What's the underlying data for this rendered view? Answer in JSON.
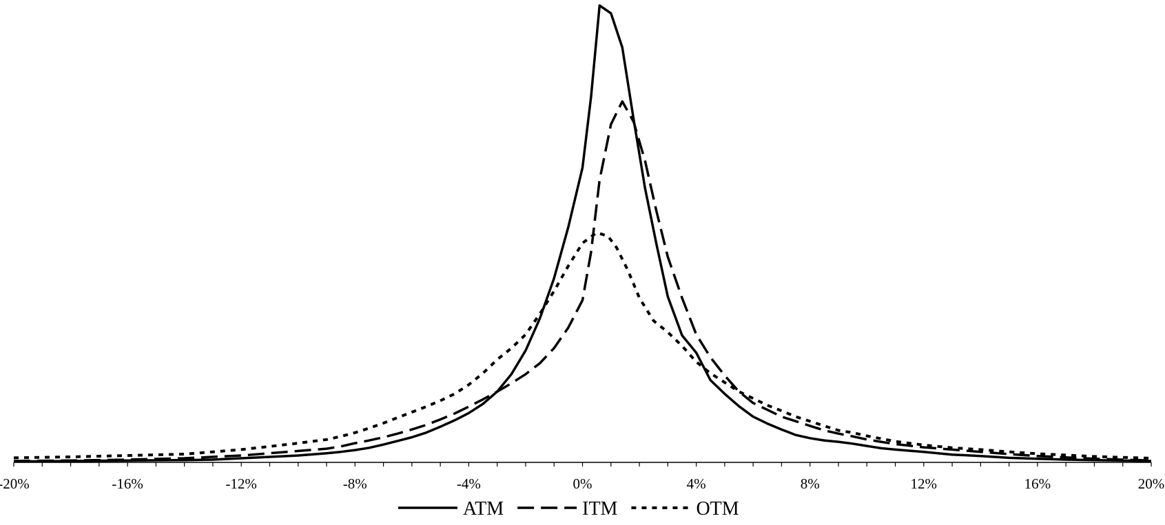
{
  "chart_data": {
    "type": "line",
    "title": "",
    "xlabel": "",
    "ylabel": "",
    "xlim": [
      -20,
      20
    ],
    "ylim": [
      0,
      100
    ],
    "x_ticks": [
      -20,
      -16,
      -12,
      -8,
      -4,
      0,
      4,
      8,
      12,
      16,
      20
    ],
    "x_tick_labels": [
      "-20%",
      "-16%",
      "-12%",
      "-8%",
      "-4%",
      "0%",
      "4%",
      "8%",
      "12%",
      "16%",
      "20%"
    ],
    "y_axis_visible": false,
    "grid": false,
    "legend_position": "bottom",
    "series": [
      {
        "name": "ATM",
        "line_style": "solid",
        "color": "#000000",
        "x": [
          -20,
          -18,
          -16,
          -14,
          -13,
          -12,
          -11,
          -10,
          -9,
          -8.5,
          -8,
          -7.5,
          -7,
          -6.5,
          -6,
          -5.5,
          -5,
          -4.5,
          -4,
          -3.5,
          -3,
          -2.5,
          -2,
          -1.5,
          -1,
          -0.5,
          0,
          0.3,
          0.6,
          1.0,
          1.4,
          1.8,
          2.2,
          2.6,
          3.0,
          3.5,
          4.0,
          4.5,
          5.0,
          5.5,
          6.0,
          6.5,
          7.0,
          7.5,
          8.0,
          8.5,
          9.0,
          9.5,
          10,
          10.5,
          11,
          12,
          13,
          14,
          15,
          16,
          17,
          18,
          19,
          20
        ],
        "values": [
          0.2,
          0.3,
          0.4,
          0.5,
          0.6,
          0.9,
          1.2,
          1.5,
          2.0,
          2.3,
          2.7,
          3.2,
          3.9,
          4.7,
          5.5,
          6.5,
          7.8,
          9.2,
          10.8,
          12.8,
          15.5,
          19.3,
          24.5,
          31.5,
          40.3,
          51.5,
          64.5,
          80.0,
          100.0,
          98.3,
          90.8,
          75.0,
          60.0,
          47.8,
          36.3,
          27.8,
          24.0,
          18.0,
          15.0,
          12.3,
          10.0,
          8.5,
          7.2,
          6.0,
          5.3,
          4.8,
          4.5,
          4.1,
          3.6,
          3.1,
          2.8,
          2.3,
          1.7,
          1.4,
          1.0,
          0.8,
          0.6,
          0.5,
          0.4,
          0.3
        ]
      },
      {
        "name": "ITM",
        "line_style": "dashed",
        "color": "#000000",
        "x": [
          -20,
          -18,
          -16,
          -14,
          -12,
          -11,
          -10,
          -9,
          -8.5,
          -8,
          -7.5,
          -7,
          -6.5,
          -6,
          -5.5,
          -5,
          -4.5,
          -4,
          -3.5,
          -3,
          -2.5,
          -2,
          -1.5,
          -1,
          -0.5,
          0,
          0.3,
          0.6,
          1.0,
          1.4,
          1.8,
          2.2,
          2.6,
          3.0,
          3.5,
          4.0,
          4.5,
          5.0,
          5.5,
          6.0,
          6.5,
          7.0,
          7.5,
          8.0,
          8.5,
          9.0,
          9.5,
          10,
          10.5,
          11,
          12,
          13,
          14,
          15,
          16,
          17,
          18,
          19,
          20
        ],
        "values": [
          0.3,
          0.4,
          0.6,
          0.9,
          1.5,
          2.0,
          2.5,
          3.0,
          3.5,
          4.2,
          4.8,
          5.5,
          6.3,
          7.2,
          8.2,
          9.4,
          10.7,
          12.2,
          13.8,
          15.5,
          17.3,
          19.3,
          21.7,
          25.0,
          29.5,
          35.5,
          46.0,
          61.8,
          74.0,
          79.0,
          74.5,
          66.0,
          55.0,
          45.0,
          36.0,
          28.0,
          23.0,
          19.0,
          15.5,
          13.0,
          11.5,
          10.0,
          9.0,
          8.0,
          7.0,
          6.3,
          5.7,
          5.0,
          4.5,
          4.0,
          3.3,
          2.8,
          2.3,
          1.8,
          1.4,
          1.1,
          0.8,
          0.6,
          0.4
        ]
      },
      {
        "name": "OTM",
        "line_style": "dotted",
        "color": "#000000",
        "x": [
          -20,
          -18,
          -16,
          -14,
          -13,
          -12,
          -11,
          -10,
          -9,
          -8.5,
          -8,
          -7.5,
          -7,
          -6.5,
          -6,
          -5.5,
          -5,
          -4.5,
          -4,
          -3.5,
          -3,
          -2.5,
          -2,
          -1.5,
          -1,
          -0.5,
          0,
          0.5,
          0.9,
          1.2,
          1.6,
          2.0,
          2.5,
          3.0,
          3.5,
          4.0,
          4.5,
          5.0,
          5.5,
          6.0,
          6.5,
          7.0,
          7.5,
          8.0,
          8.5,
          9.0,
          9.5,
          10,
          10.5,
          11,
          12,
          13,
          14,
          15,
          16,
          17,
          18,
          19,
          20
        ],
        "values": [
          1.0,
          1.2,
          1.5,
          1.8,
          2.3,
          2.8,
          3.5,
          4.2,
          5.0,
          5.7,
          6.5,
          7.5,
          8.6,
          9.8,
          11.0,
          12.2,
          13.5,
          15.0,
          17.0,
          19.5,
          22.5,
          25.0,
          28.0,
          32.5,
          37.5,
          43.0,
          48.0,
          50.3,
          49.5,
          47.0,
          42.0,
          36.0,
          31.0,
          28.5,
          25.5,
          22.0,
          19.5,
          17.5,
          15.5,
          14.0,
          12.5,
          11.3,
          10.0,
          9.0,
          8.0,
          7.0,
          6.5,
          5.8,
          5.2,
          4.6,
          3.8,
          3.2,
          2.8,
          2.3,
          1.9,
          1.6,
          1.3,
          1.1,
          0.9
        ]
      }
    ]
  }
}
